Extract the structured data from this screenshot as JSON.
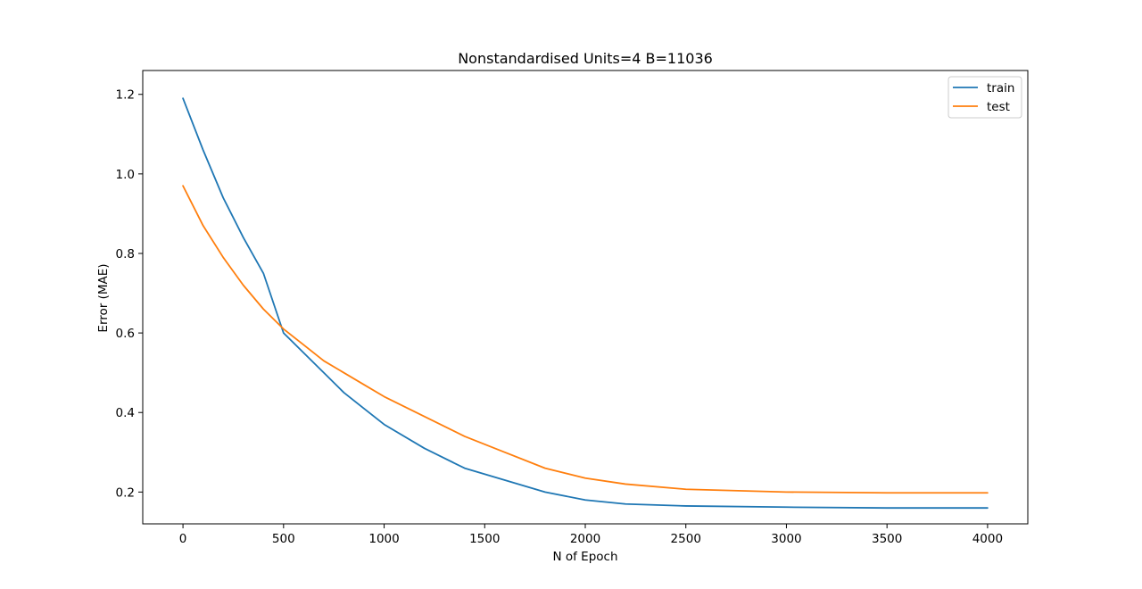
{
  "chart_data": {
    "type": "line",
    "title": "Nonstandardised Units=4 B=11036",
    "xlabel": "N of Epoch",
    "ylabel": "Error (MAE)",
    "xlim": [
      -200,
      4200
    ],
    "ylim": [
      0.12,
      1.26
    ],
    "xticks": [
      0,
      500,
      1000,
      1500,
      2000,
      2500,
      3000,
      3500,
      4000
    ],
    "xtick_labels": [
      "0",
      "500",
      "1000",
      "1500",
      "2000",
      "2500",
      "3000",
      "3500",
      "4000"
    ],
    "yticks": [
      0.2,
      0.4,
      0.6,
      0.8,
      1.0,
      1.2
    ],
    "ytick_labels": [
      "0.2",
      "0.4",
      "0.6",
      "0.8",
      "1.0",
      "1.2"
    ],
    "grid": false,
    "legend_position": "upper right",
    "series": [
      {
        "name": "train",
        "color": "#1f77b4",
        "x": [
          0,
          100,
          200,
          300,
          400,
          500,
          600,
          700,
          800,
          900,
          1000,
          1200,
          1400,
          1600,
          1800,
          2000,
          2200,
          2500,
          3000,
          3500,
          4000
        ],
        "y": [
          1.19,
          1.06,
          0.94,
          0.84,
          0.75,
          0.6,
          0.55,
          0.5,
          0.45,
          0.41,
          0.37,
          0.31,
          0.26,
          0.23,
          0.2,
          0.18,
          0.17,
          0.165,
          0.162,
          0.16,
          0.16
        ]
      },
      {
        "name": "test",
        "color": "#ff7f0e",
        "x": [
          0,
          100,
          200,
          300,
          400,
          500,
          600,
          700,
          800,
          900,
          1000,
          1200,
          1400,
          1600,
          1800,
          2000,
          2200,
          2500,
          3000,
          3500,
          4000
        ],
        "y": [
          0.97,
          0.87,
          0.79,
          0.72,
          0.66,
          0.61,
          0.57,
          0.53,
          0.5,
          0.47,
          0.44,
          0.39,
          0.34,
          0.3,
          0.26,
          0.235,
          0.22,
          0.207,
          0.2,
          0.198,
          0.198
        ]
      }
    ]
  }
}
